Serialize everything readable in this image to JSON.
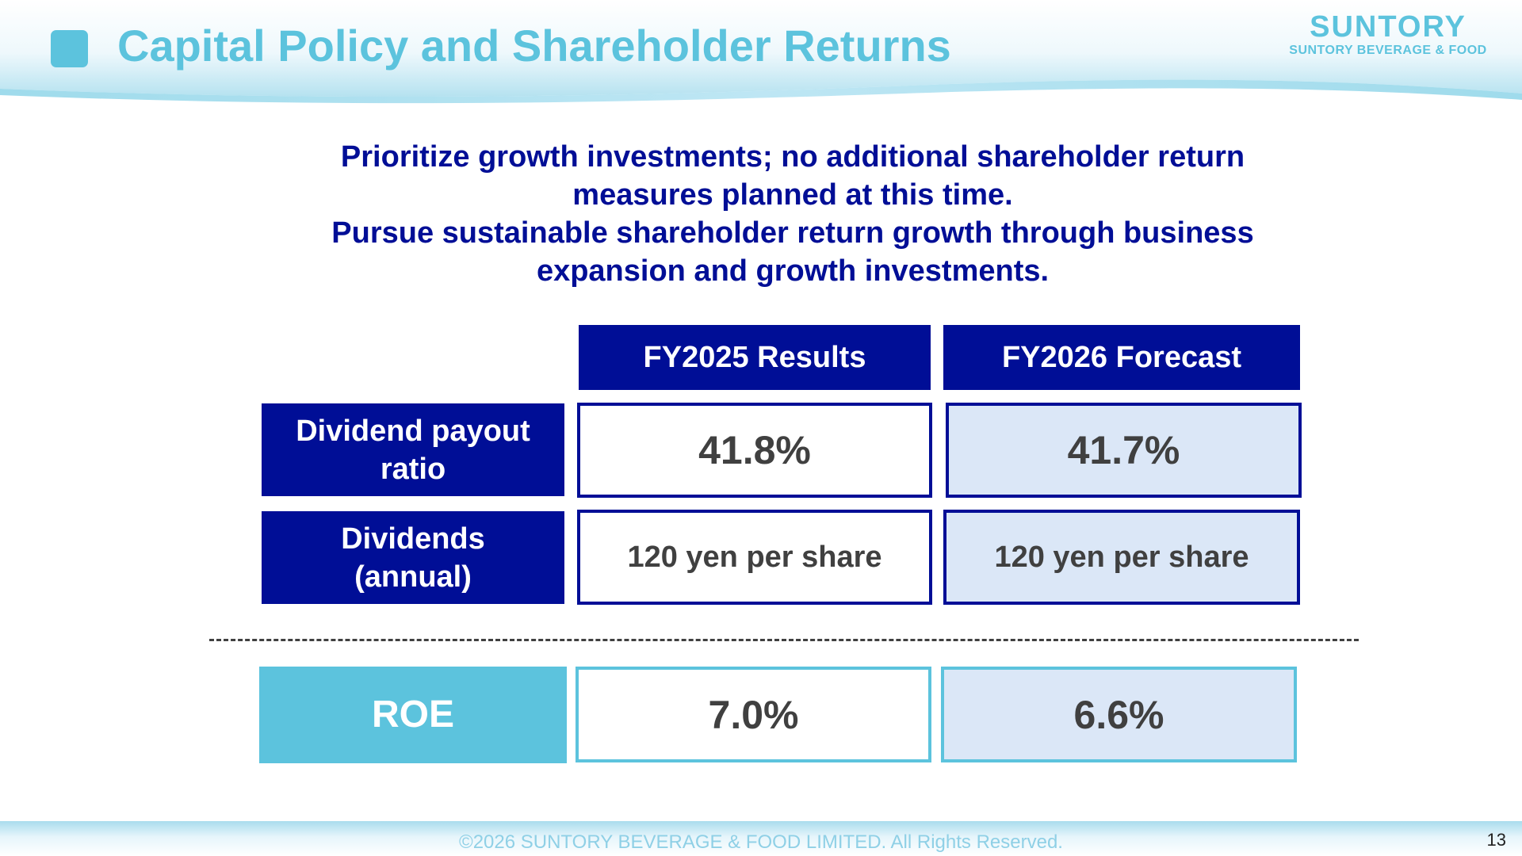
{
  "header": {
    "title": "Capital Policy and Shareholder Returns",
    "logo_main": "SUNTORY",
    "logo_sub": "SUNTORY BEVERAGE & FOOD"
  },
  "statement": {
    "line1": "Prioritize growth investments; no additional shareholder return",
    "line2": "measures planned at this time.",
    "line3": "Pursue sustainable shareholder return growth through business",
    "line4": "expansion and growth investments."
  },
  "table": {
    "columns": [
      "FY2025 Results",
      "FY2026 Forecast"
    ],
    "rows": [
      {
        "label_line1": "Dividend payout",
        "label_line2": "ratio",
        "values": [
          "41.8%",
          "41.7%"
        ]
      },
      {
        "label_line1": "Dividends",
        "label_line2": "(annual)",
        "values": [
          "120 yen per share",
          "120 yen per share"
        ]
      },
      {
        "label_line1": "ROE",
        "values": [
          "7.0%",
          "6.6%"
        ]
      }
    ]
  },
  "footer": {
    "copyright": "©2026 SUNTORY BEVERAGE & FOOD LIMITED. All Rights Reserved.",
    "page_number": "13"
  },
  "colors": {
    "navy": "#000e96",
    "light_blue": "#5cc3dd",
    "forecast_fill": "#dbe7f7",
    "value_text": "#404040"
  }
}
